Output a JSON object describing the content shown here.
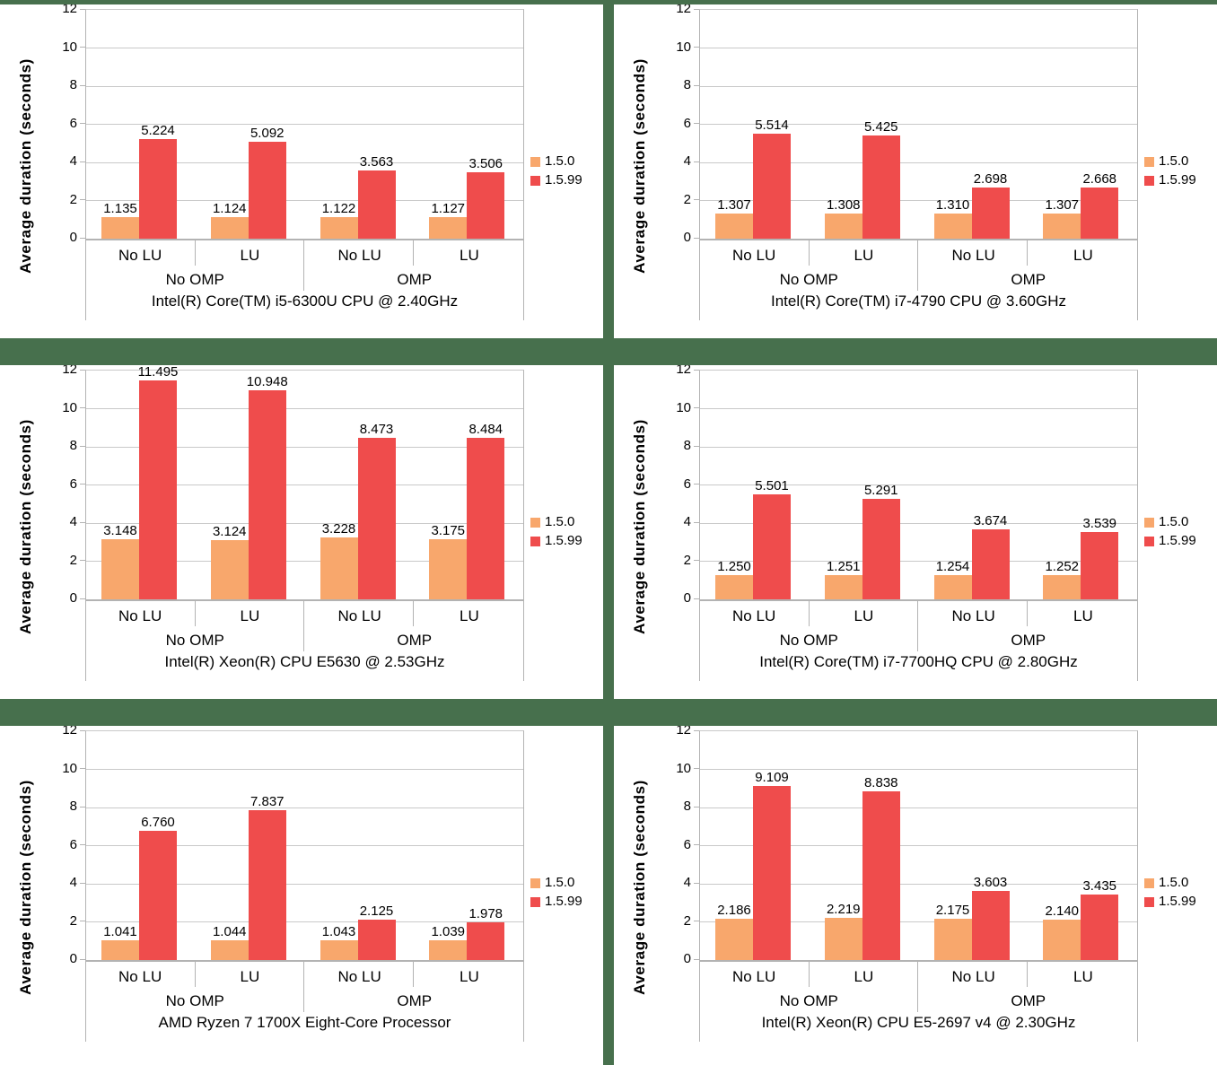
{
  "separator_color": "#47704D",
  "panel_background": "#FFFFFF",
  "colors": {
    "series": {
      "1.5.0": "#F8A76C",
      "1.5.99": "#EF4C4C"
    },
    "gridline": "#C9C9C9",
    "axis_line": "#B3B3B3",
    "text": "#000000"
  },
  "axis": {
    "title": "Average duration (seconds)",
    "ymin": 0,
    "ymax": 12,
    "tick_step": 2,
    "ticks": [
      12,
      10,
      8,
      6,
      4,
      2,
      0
    ]
  },
  "category_axis": {
    "level1": [
      "No LU",
      "LU",
      "No LU",
      "LU"
    ],
    "level2": [
      {
        "label": "No OMP",
        "span": 2
      },
      {
        "label": "OMP",
        "span": 2
      }
    ]
  },
  "legend": {
    "position": "right",
    "items": [
      {
        "label": "1.5.0"
      },
      {
        "label": "1.5.99"
      }
    ]
  },
  "chart_data": [
    {
      "type": "bar",
      "title": "Intel(R) Core(TM) i5-6300U CPU @ 2.40GHz",
      "ylabel": "Average duration (seconds)",
      "ylim": [
        0,
        12
      ],
      "grid": true,
      "legend_position": "right",
      "categories": [
        "No OMP / No LU",
        "No OMP / LU",
        "OMP / No LU",
        "OMP / LU"
      ],
      "series": [
        {
          "name": "1.5.0",
          "values": [
            1.135,
            1.124,
            1.122,
            1.127
          ],
          "labels": [
            "1.135",
            "1.124",
            "1.122",
            "1.127"
          ]
        },
        {
          "name": "1.5.99",
          "values": [
            5.224,
            5.092,
            3.563,
            3.506
          ],
          "labels": [
            "5.224",
            "5.092",
            "3.563",
            "3.506"
          ]
        }
      ]
    },
    {
      "type": "bar",
      "title": "Intel(R) Core(TM) i7-4790 CPU @ 3.60GHz",
      "ylabel": "Average duration (seconds)",
      "ylim": [
        0,
        12
      ],
      "grid": true,
      "legend_position": "right",
      "categories": [
        "No OMP / No LU",
        "No OMP / LU",
        "OMP / No LU",
        "OMP / LU"
      ],
      "series": [
        {
          "name": "1.5.0",
          "values": [
            1.307,
            1.308,
            1.31,
            1.307
          ],
          "labels": [
            "1.307",
            "1.308",
            "1.310",
            "1.307"
          ]
        },
        {
          "name": "1.5.99",
          "values": [
            5.514,
            5.425,
            2.698,
            2.668
          ],
          "labels": [
            "5.514",
            "5.425",
            "2.698",
            "2.668"
          ]
        }
      ]
    },
    {
      "type": "bar",
      "title": "Intel(R) Xeon(R) CPU E5630 @ 2.53GHz",
      "ylabel": "Average duration (seconds)",
      "ylim": [
        0,
        12
      ],
      "grid": true,
      "legend_position": "right",
      "categories": [
        "No OMP / No LU",
        "No OMP / LU",
        "OMP / No LU",
        "OMP / LU"
      ],
      "series": [
        {
          "name": "1.5.0",
          "values": [
            3.148,
            3.124,
            3.228,
            3.175
          ],
          "labels": [
            "3.148",
            "3.124",
            "3.228",
            "3.175"
          ]
        },
        {
          "name": "1.5.99",
          "values": [
            11.495,
            10.948,
            8.473,
            8.484
          ],
          "labels": [
            "11.495",
            "10.948",
            "8.473",
            "8.484"
          ]
        }
      ]
    },
    {
      "type": "bar",
      "title": "Intel(R) Core(TM) i7-7700HQ CPU @ 2.80GHz",
      "ylabel": "Average duration (seconds)",
      "ylim": [
        0,
        12
      ],
      "grid": true,
      "legend_position": "right",
      "categories": [
        "No OMP / No LU",
        "No OMP / LU",
        "OMP / No LU",
        "OMP / LU"
      ],
      "series": [
        {
          "name": "1.5.0",
          "values": [
            1.25,
            1.251,
            1.254,
            1.252
          ],
          "labels": [
            "1.250",
            "1.251",
            "1.254",
            "1.252"
          ]
        },
        {
          "name": "1.5.99",
          "values": [
            5.501,
            5.291,
            3.674,
            3.539
          ],
          "labels": [
            "5.501",
            "5.291",
            "3.674",
            "3.539"
          ]
        }
      ]
    },
    {
      "type": "bar",
      "title": "AMD Ryzen 7 1700X Eight-Core Processor",
      "ylabel": "Average duration (seconds)",
      "ylim": [
        0,
        12
      ],
      "grid": true,
      "legend_position": "right",
      "categories": [
        "No OMP / No LU",
        "No OMP / LU",
        "OMP / No LU",
        "OMP / LU"
      ],
      "series": [
        {
          "name": "1.5.0",
          "values": [
            1.041,
            1.044,
            1.043,
            1.039
          ],
          "labels": [
            "1.041",
            "1.044",
            "1.043",
            "1.039"
          ]
        },
        {
          "name": "1.5.99",
          "values": [
            6.76,
            7.837,
            2.125,
            1.978
          ],
          "labels": [
            "6.760",
            "7.837",
            "2.125",
            "1.978"
          ]
        }
      ]
    },
    {
      "type": "bar",
      "title": "Intel(R) Xeon(R) CPU E5-2697 v4 @ 2.30GHz",
      "ylabel": "Average duration (seconds)",
      "ylim": [
        0,
        12
      ],
      "grid": true,
      "legend_position": "right",
      "categories": [
        "No OMP / No LU",
        "No OMP / LU",
        "OMP / No LU",
        "OMP / LU"
      ],
      "series": [
        {
          "name": "1.5.0",
          "values": [
            2.186,
            2.219,
            2.175,
            2.14
          ],
          "labels": [
            "2.186",
            "2.219",
            "2.175",
            "2.140"
          ]
        },
        {
          "name": "1.5.99",
          "values": [
            9.109,
            8.838,
            3.603,
            3.435
          ],
          "labels": [
            "9.109",
            "8.838",
            "3.603",
            "3.435"
          ]
        }
      ]
    }
  ]
}
